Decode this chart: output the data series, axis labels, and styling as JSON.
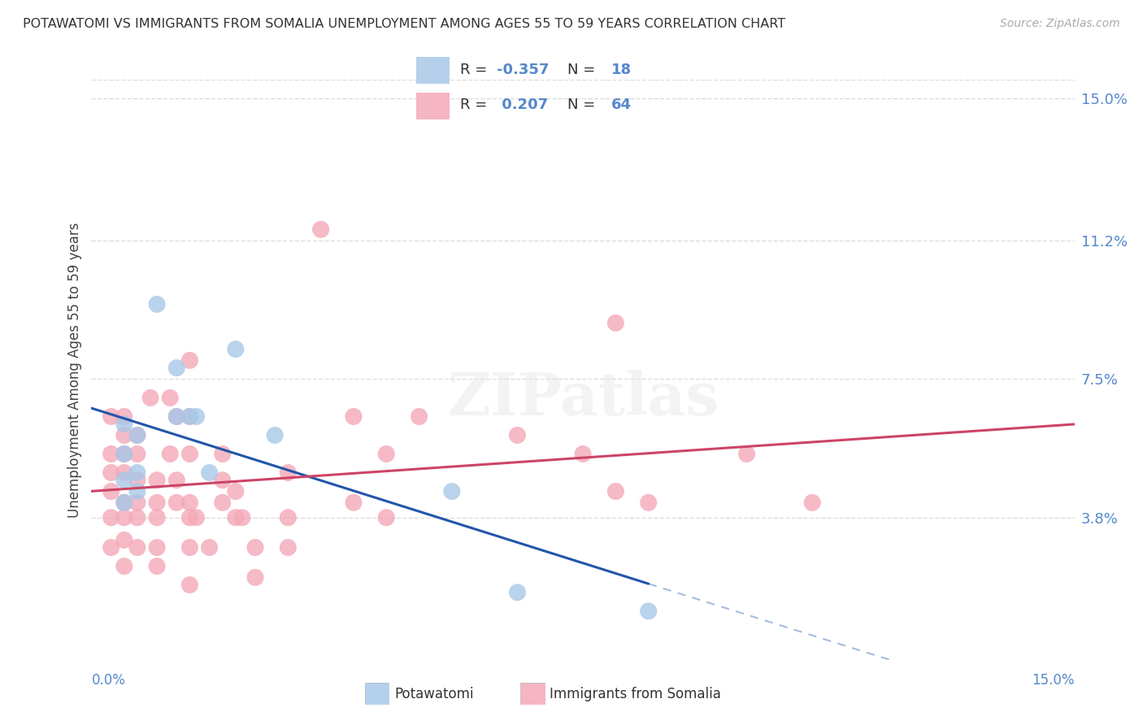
{
  "title": "POTAWATOMI VS IMMIGRANTS FROM SOMALIA UNEMPLOYMENT AMONG AGES 55 TO 59 YEARS CORRELATION CHART",
  "source_text": "Source: ZipAtlas.com",
  "ylabel": "Unemployment Among Ages 55 to 59 years",
  "ytick_labels": [
    "15.0%",
    "11.2%",
    "7.5%",
    "3.8%"
  ],
  "ytick_values": [
    0.15,
    0.112,
    0.075,
    0.038
  ],
  "xmin": 0.0,
  "xmax": 0.15,
  "ymin": 0.0,
  "ymax": 0.155,
  "legend_R1": "-0.357",
  "legend_N1": "18",
  "legend_R2": "0.207",
  "legend_N2": "64",
  "potawatomi_color": "#a8c8e8",
  "somalia_color": "#f4a8b8",
  "potawatomi_line_color": "#2255aa",
  "somalia_line_color": "#cc4466",
  "tick_color": "#5588cc",
  "grid_color": "#dddddd",
  "title_color": "#333333",
  "source_color": "#aaaaaa",
  "potawatomi_points": [
    [
      0.005,
      0.063
    ],
    [
      0.005,
      0.055
    ],
    [
      0.005,
      0.048
    ],
    [
      0.005,
      0.042
    ],
    [
      0.007,
      0.06
    ],
    [
      0.007,
      0.05
    ],
    [
      0.007,
      0.045
    ],
    [
      0.01,
      0.095
    ],
    [
      0.013,
      0.078
    ],
    [
      0.013,
      0.065
    ],
    [
      0.015,
      0.065
    ],
    [
      0.016,
      0.065
    ],
    [
      0.018,
      0.05
    ],
    [
      0.022,
      0.083
    ],
    [
      0.028,
      0.06
    ],
    [
      0.055,
      0.045
    ],
    [
      0.065,
      0.018
    ],
    [
      0.085,
      0.013
    ]
  ],
  "somalia_points": [
    [
      0.003,
      0.065
    ],
    [
      0.003,
      0.055
    ],
    [
      0.003,
      0.05
    ],
    [
      0.003,
      0.045
    ],
    [
      0.003,
      0.038
    ],
    [
      0.003,
      0.03
    ],
    [
      0.005,
      0.065
    ],
    [
      0.005,
      0.06
    ],
    [
      0.005,
      0.055
    ],
    [
      0.005,
      0.05
    ],
    [
      0.005,
      0.042
    ],
    [
      0.005,
      0.038
    ],
    [
      0.005,
      0.032
    ],
    [
      0.005,
      0.025
    ],
    [
      0.007,
      0.06
    ],
    [
      0.007,
      0.055
    ],
    [
      0.007,
      0.048
    ],
    [
      0.007,
      0.042
    ],
    [
      0.007,
      0.038
    ],
    [
      0.007,
      0.03
    ],
    [
      0.009,
      0.07
    ],
    [
      0.01,
      0.048
    ],
    [
      0.01,
      0.042
    ],
    [
      0.01,
      0.038
    ],
    [
      0.01,
      0.03
    ],
    [
      0.01,
      0.025
    ],
    [
      0.012,
      0.07
    ],
    [
      0.012,
      0.055
    ],
    [
      0.013,
      0.065
    ],
    [
      0.013,
      0.048
    ],
    [
      0.013,
      0.042
    ],
    [
      0.015,
      0.08
    ],
    [
      0.015,
      0.065
    ],
    [
      0.015,
      0.055
    ],
    [
      0.015,
      0.042
    ],
    [
      0.015,
      0.038
    ],
    [
      0.015,
      0.03
    ],
    [
      0.015,
      0.02
    ],
    [
      0.016,
      0.038
    ],
    [
      0.018,
      0.03
    ],
    [
      0.02,
      0.055
    ],
    [
      0.02,
      0.048
    ],
    [
      0.02,
      0.042
    ],
    [
      0.022,
      0.045
    ],
    [
      0.022,
      0.038
    ],
    [
      0.023,
      0.038
    ],
    [
      0.025,
      0.03
    ],
    [
      0.025,
      0.022
    ],
    [
      0.03,
      0.05
    ],
    [
      0.03,
      0.038
    ],
    [
      0.03,
      0.03
    ],
    [
      0.035,
      0.115
    ],
    [
      0.04,
      0.065
    ],
    [
      0.04,
      0.042
    ],
    [
      0.045,
      0.055
    ],
    [
      0.045,
      0.038
    ],
    [
      0.05,
      0.065
    ],
    [
      0.065,
      0.06
    ],
    [
      0.075,
      0.055
    ],
    [
      0.08,
      0.09
    ],
    [
      0.08,
      0.045
    ],
    [
      0.085,
      0.042
    ],
    [
      0.1,
      0.055
    ],
    [
      0.11,
      0.042
    ]
  ]
}
